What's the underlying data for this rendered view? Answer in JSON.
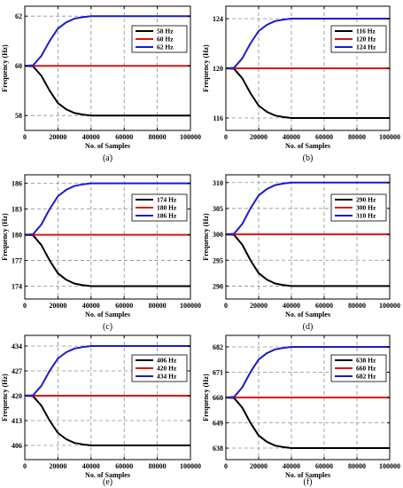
{
  "colors": {
    "black": "#000000",
    "red": "#e01010",
    "blue": "#1a1ad0",
    "grid": "#8c8c8c"
  },
  "chart_data": [
    {
      "type": "line",
      "caption": "(a)",
      "xlabel": "No. of Samples",
      "ylabel": "Frequency (Hz)",
      "xlim": [
        0,
        100000
      ],
      "ylim": [
        57.4,
        62.4
      ],
      "xticks": [
        "0",
        "20000",
        "40000",
        "60000",
        "80000",
        "100000"
      ],
      "yticks": [
        {
          "value": 58,
          "label": "58"
        },
        {
          "value": 60,
          "label": "60"
        },
        {
          "value": 62,
          "label": "62"
        }
      ],
      "legend_position": "top-right",
      "grid": true,
      "series": [
        {
          "name": "58 Hz",
          "color": "black",
          "x": [
            0,
            5000,
            10000,
            15000,
            20000,
            25000,
            30000,
            35000,
            40000,
            50000,
            60000,
            100000
          ],
          "values": [
            60,
            59.98,
            59.6,
            59.0,
            58.5,
            58.25,
            58.1,
            58.04,
            58.0,
            58.0,
            58.0,
            58.0
          ]
        },
        {
          "name": "60 Hz",
          "color": "red",
          "x": [
            0,
            100000
          ],
          "values": [
            60,
            60
          ]
        },
        {
          "name": "62 Hz",
          "color": "blue",
          "x": [
            0,
            5000,
            10000,
            15000,
            20000,
            25000,
            30000,
            35000,
            40000,
            50000,
            60000,
            100000
          ],
          "values": [
            60,
            60.02,
            60.4,
            61.0,
            61.5,
            61.75,
            61.9,
            61.96,
            62.0,
            62.0,
            62.0,
            62.0
          ]
        }
      ]
    },
    {
      "type": "line",
      "caption": "(b)",
      "xlabel": "No. of Samples",
      "ylabel": "Frequency (Hz)",
      "xlim": [
        0,
        100000
      ],
      "ylim": [
        115,
        125
      ],
      "xticks": [
        "0",
        "20000",
        "40000",
        "60000",
        "80000",
        "100000"
      ],
      "yticks": [
        {
          "value": 116,
          "label": "116"
        },
        {
          "value": 120,
          "label": "120"
        },
        {
          "value": 124,
          "label": "124"
        }
      ],
      "legend_position": "top-right",
      "grid": true,
      "series": [
        {
          "name": "116 Hz",
          "color": "black",
          "x": [
            0,
            5000,
            10000,
            15000,
            20000,
            25000,
            30000,
            35000,
            40000,
            50000,
            60000,
            100000
          ],
          "values": [
            120,
            119.96,
            119.2,
            118.0,
            117.0,
            116.5,
            116.2,
            116.08,
            116.0,
            116.0,
            116.0,
            116.0
          ]
        },
        {
          "name": "120 Hz",
          "color": "red",
          "x": [
            0,
            100000
          ],
          "values": [
            120,
            120
          ]
        },
        {
          "name": "124 Hz",
          "color": "blue",
          "x": [
            0,
            5000,
            10000,
            15000,
            20000,
            25000,
            30000,
            35000,
            40000,
            50000,
            60000,
            100000
          ],
          "values": [
            120,
            120.04,
            120.8,
            122.0,
            123.0,
            123.5,
            123.8,
            123.92,
            124.0,
            124.0,
            124.0,
            124.0
          ]
        }
      ]
    },
    {
      "type": "line",
      "caption": "(c)",
      "xlabel": "No. of Samples",
      "ylabel": "Frequency (Hz)",
      "xlim": [
        0,
        100000
      ],
      "ylim": [
        172.5,
        187
      ],
      "xticks": [
        "0",
        "20000",
        "40000",
        "60000",
        "80000",
        "100000"
      ],
      "yticks": [
        {
          "value": 174,
          "label": "174"
        },
        {
          "value": 177,
          "label": "177"
        },
        {
          "value": 180,
          "label": "180"
        },
        {
          "value": 183,
          "label": "183"
        },
        {
          "value": 186,
          "label": "186"
        }
      ],
      "legend_position": "top-right",
      "grid": true,
      "series": [
        {
          "name": "174 Hz",
          "color": "black",
          "x": [
            0,
            5000,
            10000,
            15000,
            20000,
            25000,
            30000,
            35000,
            40000,
            50000,
            60000,
            100000
          ],
          "values": [
            180,
            179.94,
            178.8,
            177.0,
            175.5,
            174.75,
            174.3,
            174.12,
            174.0,
            174.0,
            174.0,
            174.0
          ]
        },
        {
          "name": "180 Hz",
          "color": "red",
          "x": [
            0,
            100000
          ],
          "values": [
            180,
            180
          ]
        },
        {
          "name": "186 Hz",
          "color": "blue",
          "x": [
            0,
            5000,
            10000,
            15000,
            20000,
            25000,
            30000,
            35000,
            40000,
            50000,
            60000,
            100000
          ],
          "values": [
            180,
            180.06,
            181.2,
            183.0,
            184.5,
            185.25,
            185.7,
            185.88,
            186.0,
            186.0,
            186.0,
            186.0
          ]
        }
      ]
    },
    {
      "type": "line",
      "caption": "(d)",
      "xlabel": "No. of Samples",
      "ylabel": "Frequency (Hz)",
      "xlim": [
        0,
        100000
      ],
      "ylim": [
        287.5,
        311.5
      ],
      "xticks": [
        "0",
        "20000",
        "40000",
        "60000",
        "80000",
        "100000"
      ],
      "yticks": [
        {
          "value": 290,
          "label": "290"
        },
        {
          "value": 295,
          "label": "295"
        },
        {
          "value": 300,
          "label": "300"
        },
        {
          "value": 305,
          "label": "305"
        },
        {
          "value": 310,
          "label": "310"
        }
      ],
      "legend_position": "top-right",
      "grid": true,
      "series": [
        {
          "name": "290 Hz",
          "color": "black",
          "x": [
            0,
            5000,
            10000,
            15000,
            20000,
            25000,
            30000,
            35000,
            40000,
            50000,
            60000,
            100000
          ],
          "values": [
            300,
            299.9,
            298.0,
            295.0,
            292.5,
            291.25,
            290.5,
            290.2,
            290.0,
            290.0,
            290.0,
            290.0
          ]
        },
        {
          "name": "300 Hz",
          "color": "red",
          "x": [
            0,
            100000
          ],
          "values": [
            300,
            300
          ]
        },
        {
          "name": "310 Hz",
          "color": "blue",
          "x": [
            0,
            5000,
            10000,
            15000,
            20000,
            25000,
            30000,
            35000,
            40000,
            50000,
            60000,
            100000
          ],
          "values": [
            300,
            300.1,
            302.0,
            305.0,
            307.5,
            308.75,
            309.5,
            309.8,
            310.0,
            310.0,
            310.0,
            310.0
          ]
        }
      ]
    },
    {
      "type": "line",
      "caption": "(e)",
      "xlabel": "No. of Samples",
      "ylabel": "Frequency (Hz)",
      "xlim": [
        0,
        100000
      ],
      "ylim": [
        402,
        437
      ],
      "xticks": [
        "0",
        "20000",
        "40000",
        "60000",
        "80000",
        "100000"
      ],
      "yticks": [
        {
          "value": 406,
          "label": "406"
        },
        {
          "value": 413,
          "label": "413"
        },
        {
          "value": 420,
          "label": "420"
        },
        {
          "value": 427,
          "label": "427"
        },
        {
          "value": 434,
          "label": "434"
        }
      ],
      "legend_position": "top-right",
      "grid": true,
      "series": [
        {
          "name": "406 Hz",
          "color": "black",
          "x": [
            0,
            5000,
            10000,
            15000,
            20000,
            25000,
            30000,
            35000,
            40000,
            50000,
            60000,
            100000
          ],
          "values": [
            420,
            419.86,
            417.2,
            413.0,
            409.5,
            407.75,
            406.7,
            406.28,
            406.0,
            406.0,
            406.0,
            406.0
          ]
        },
        {
          "name": "420 Hz",
          "color": "red",
          "x": [
            0,
            100000
          ],
          "values": [
            420,
            420
          ]
        },
        {
          "name": "434 Hz",
          "color": "blue",
          "x": [
            0,
            5000,
            10000,
            15000,
            20000,
            25000,
            30000,
            35000,
            40000,
            50000,
            60000,
            100000
          ],
          "values": [
            420,
            420.14,
            422.8,
            427.0,
            430.5,
            432.25,
            433.3,
            433.72,
            434.0,
            434.0,
            434.0,
            434.0
          ]
        }
      ]
    },
    {
      "type": "line",
      "caption": "(f)",
      "xlabel": "No. of Samples",
      "ylabel": "Frequency (Hz)",
      "xlim": [
        0,
        100000
      ],
      "ylim": [
        633,
        687
      ],
      "xticks": [
        "0",
        "20000",
        "40000",
        "60000",
        "80000",
        "100000"
      ],
      "yticks": [
        {
          "value": 638,
          "label": "638"
        },
        {
          "value": 649,
          "label": "649"
        },
        {
          "value": 660,
          "label": "660"
        },
        {
          "value": 671,
          "label": "671"
        },
        {
          "value": 682,
          "label": "682"
        }
      ],
      "legend_position": "top-right",
      "grid": true,
      "series": [
        {
          "name": "638 Hz",
          "color": "black",
          "x": [
            0,
            5000,
            10000,
            15000,
            20000,
            25000,
            30000,
            35000,
            40000,
            50000,
            60000,
            100000
          ],
          "values": [
            660,
            659.78,
            655.6,
            649.0,
            643.5,
            640.75,
            639.1,
            638.44,
            638.0,
            638.0,
            638.0,
            638.0
          ]
        },
        {
          "name": "660 Hz",
          "color": "red",
          "x": [
            0,
            100000
          ],
          "values": [
            660,
            660
          ]
        },
        {
          "name": "682 Hz",
          "color": "blue",
          "x": [
            0,
            5000,
            10000,
            15000,
            20000,
            25000,
            30000,
            35000,
            40000,
            50000,
            60000,
            100000
          ],
          "values": [
            660,
            660.22,
            664.4,
            671.0,
            676.5,
            679.25,
            680.9,
            681.56,
            682.0,
            682.0,
            682.0,
            682.0
          ]
        }
      ]
    }
  ]
}
